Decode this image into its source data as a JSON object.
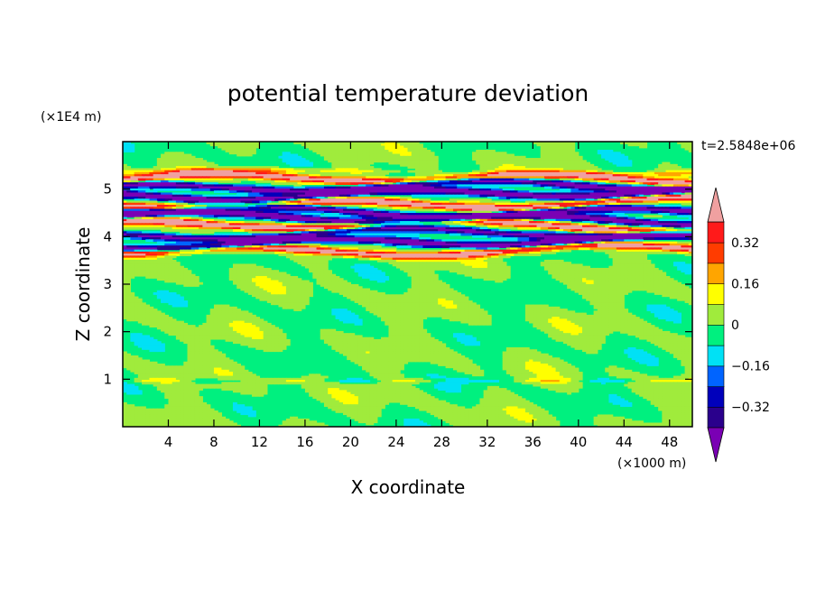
{
  "chart_data": {
    "type": "heatmap",
    "title": "potential temperature deviation",
    "xlabel": "X coordinate",
    "ylabel": "Z coordinate",
    "x_unit": "(×1000 m)",
    "y_unit": "(×1E4 m)",
    "time_label": "t=2.5848e+06",
    "xlim": [
      0,
      50
    ],
    "ylim": [
      0,
      6
    ],
    "x_ticks": [
      4,
      8,
      12,
      16,
      20,
      24,
      28,
      32,
      36,
      40,
      44,
      48
    ],
    "y_ticks": [
      1,
      2,
      3,
      4,
      5
    ],
    "colorbar": {
      "levels": [
        -0.4,
        -0.32,
        -0.24,
        -0.16,
        -0.08,
        0,
        0.08,
        0.16,
        0.24,
        0.32,
        0.4
      ],
      "tick_values": [
        0.32,
        0.16,
        0,
        -0.16,
        -0.32
      ],
      "tick_labels": [
        "0.32",
        "0.16",
        "0",
        "−0.16",
        "−0.32"
      ],
      "colors": [
        "#7a00b4",
        "#2a008c",
        "#0000bb",
        "#0064ff",
        "#00e1f5",
        "#00f07f",
        "#a0eb3c",
        "#ffff00",
        "#ffa500",
        "#ff3c00",
        "#ff1a1a",
        "#f0a0a0"
      ],
      "under_color": "#7a00b4",
      "over_color": "#f0a0a0"
    },
    "background_field": "near-zero (green) with thin small-amplitude deviations near z=1",
    "bands": [
      {
        "y": 5.2,
        "value": 0.4
      },
      {
        "y": 5.05,
        "value": -0.4
      },
      {
        "y": 4.9,
        "value": -0.45
      },
      {
        "y": 4.72,
        "value": 0.42
      },
      {
        "y": 4.55,
        "value": -0.38
      },
      {
        "y": 4.38,
        "value": -0.45
      },
      {
        "y": 4.22,
        "value": 0.42
      },
      {
        "y": 4.05,
        "value": -0.35
      },
      {
        "y": 3.88,
        "value": -0.45
      },
      {
        "y": 3.72,
        "value": 0.38
      }
    ]
  }
}
